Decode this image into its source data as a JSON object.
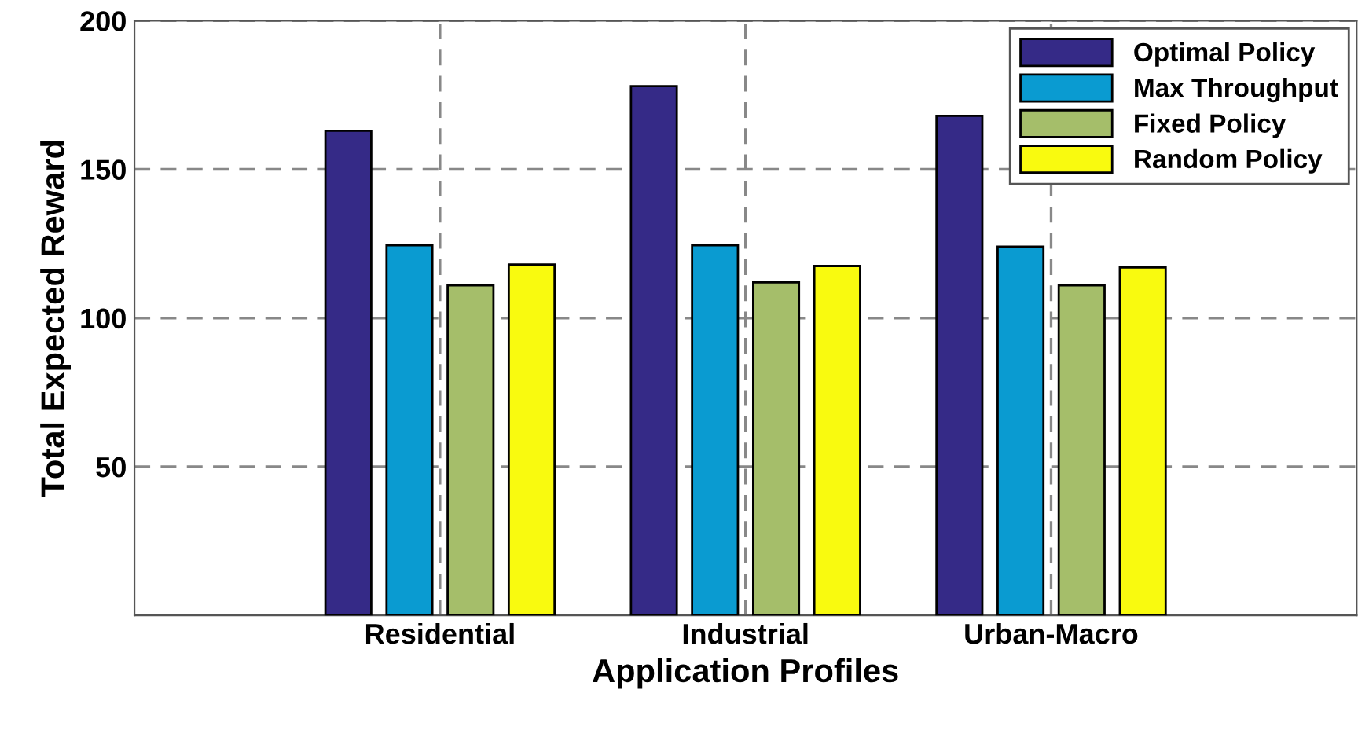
{
  "chart_data": {
    "type": "bar",
    "xlabel": "Application Profiles",
    "ylabel": "Total Expected Reward",
    "categories": [
      "Residential",
      "Industrial",
      "Urban-Macro"
    ],
    "series": [
      {
        "name": "Optimal Policy",
        "color": "#352a87",
        "values": [
          163,
          178,
          168
        ]
      },
      {
        "name": "Max Throughput",
        "color": "#0a9bd1",
        "values": [
          124.5,
          124.5,
          124
        ]
      },
      {
        "name": "Fixed Policy",
        "color": "#a5be6a",
        "values": [
          111,
          112,
          111
        ]
      },
      {
        "name": "Random Policy",
        "color": "#f9fa0f",
        "values": [
          118,
          117.5,
          117
        ]
      }
    ],
    "ylim": [
      0,
      200
    ],
    "yticks": [
      50,
      100,
      150,
      200
    ],
    "grid": true,
    "legend": "top right"
  }
}
